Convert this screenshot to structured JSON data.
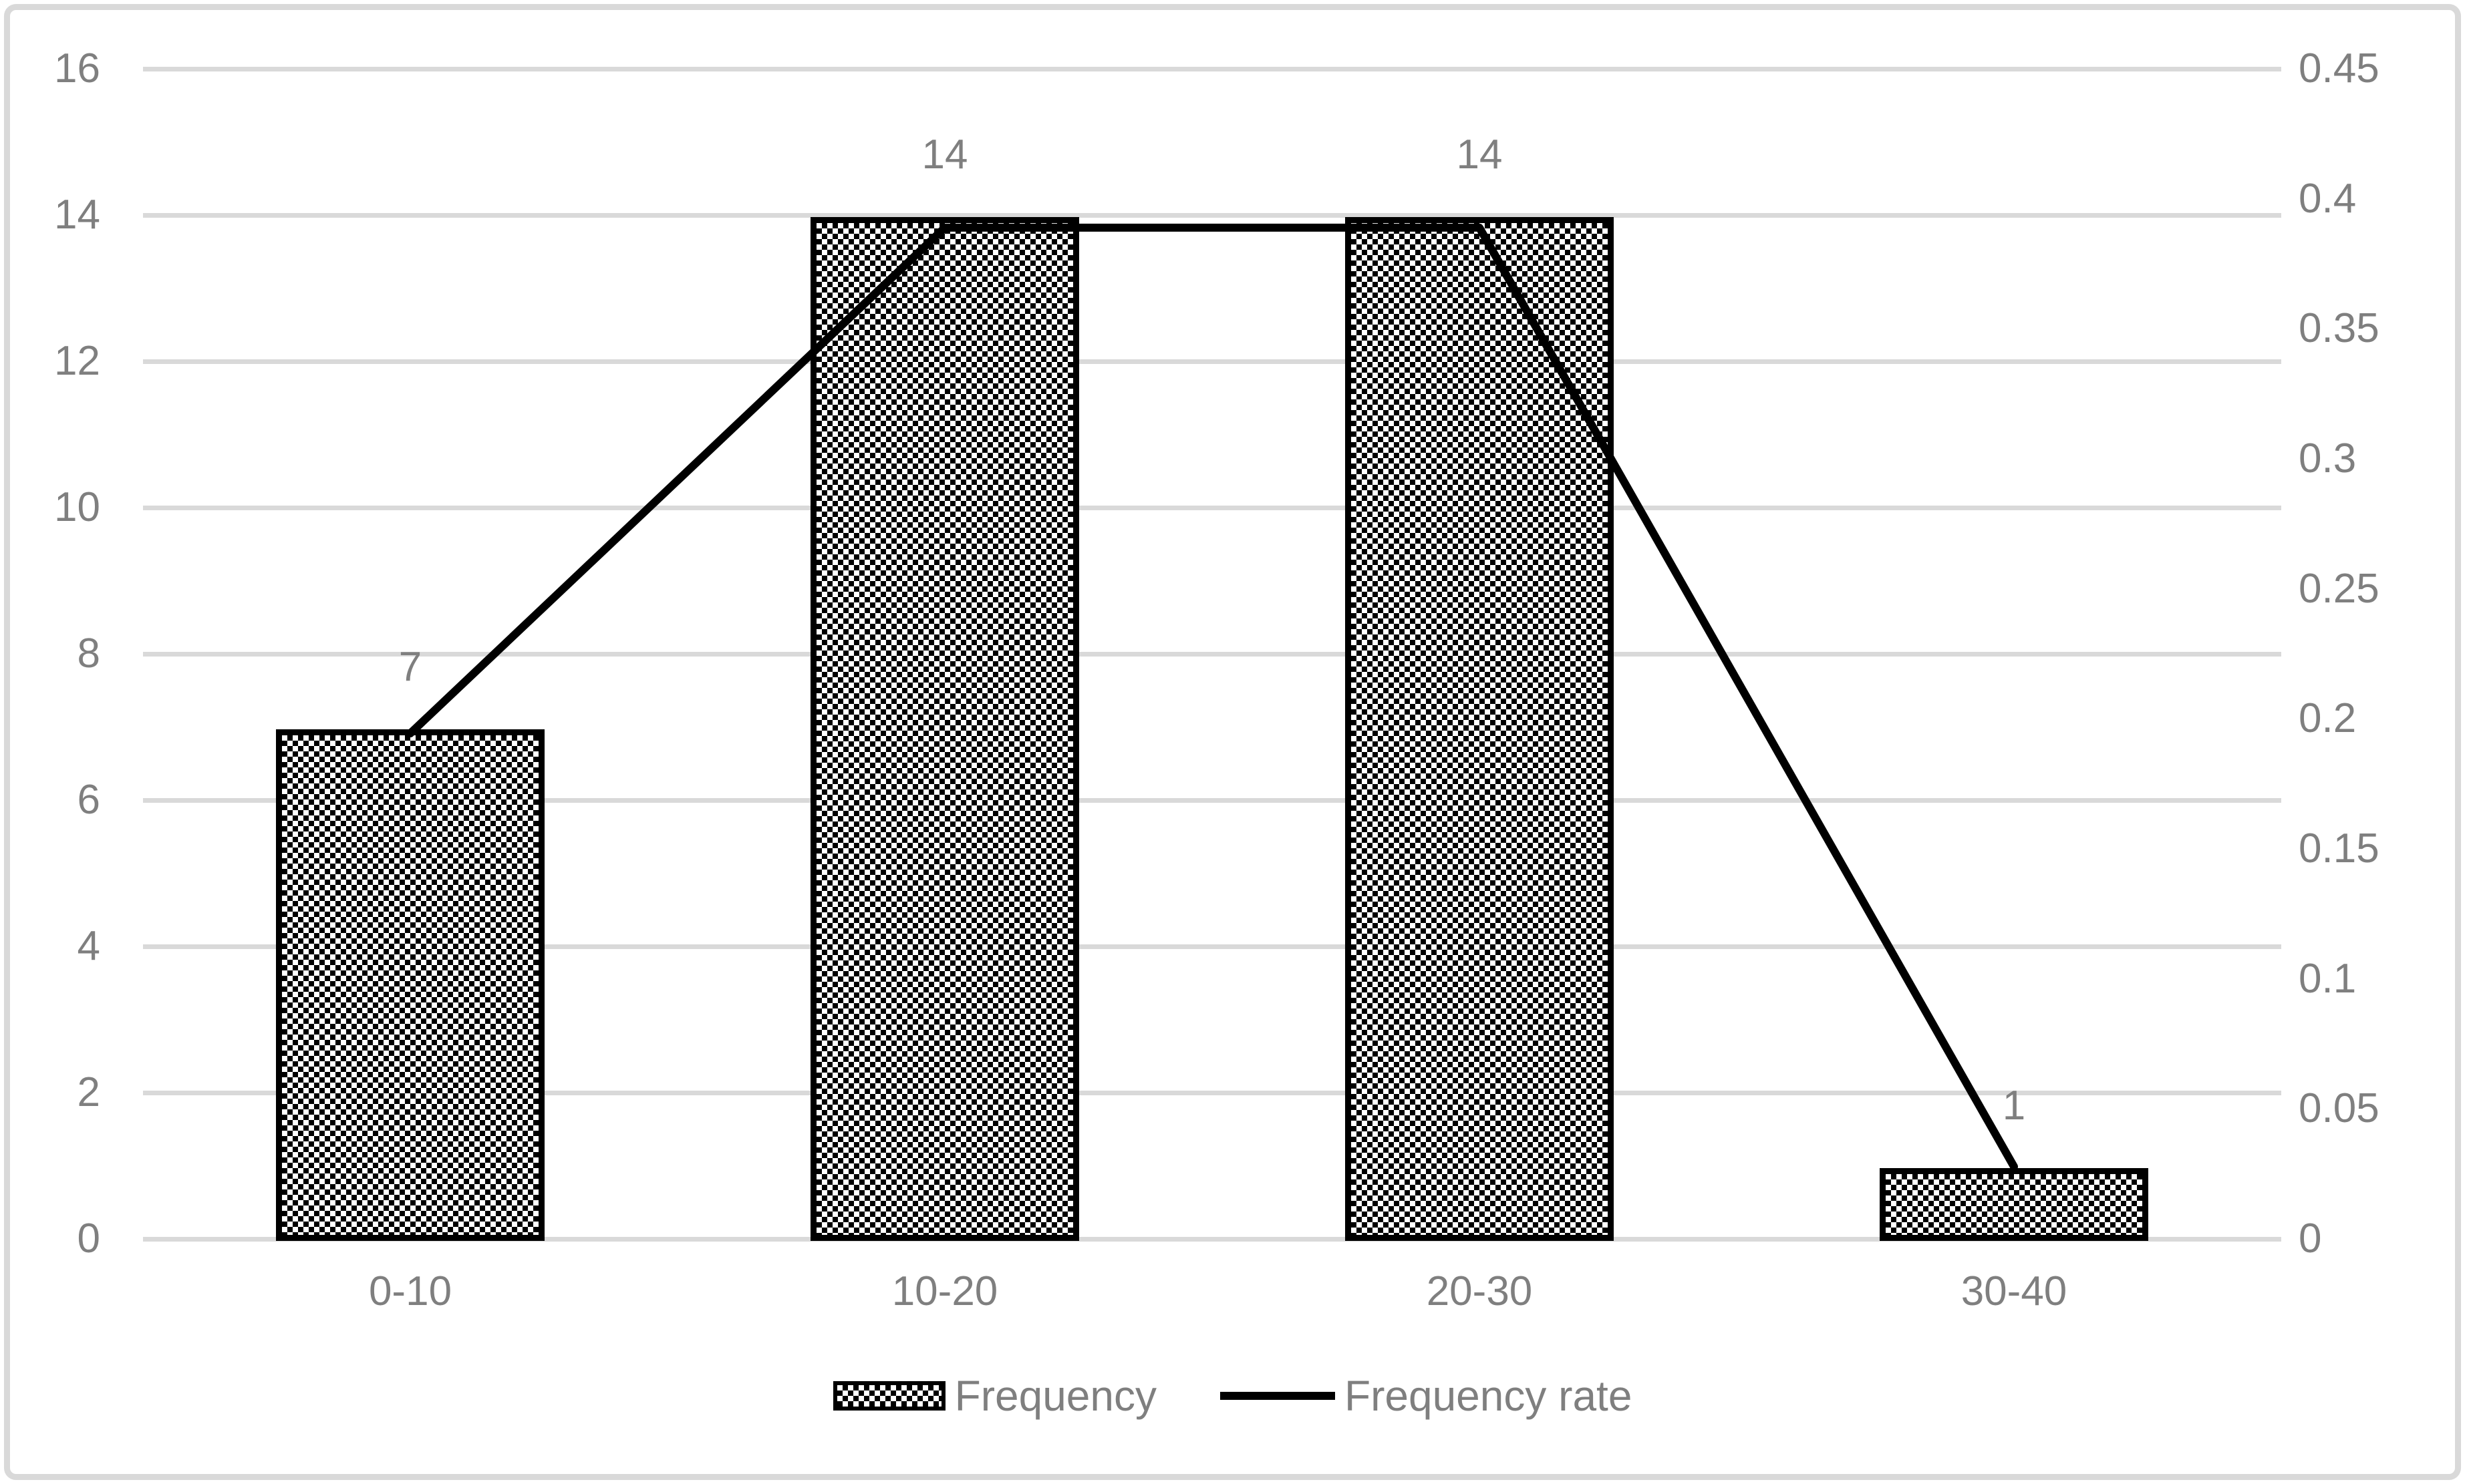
{
  "chart_data": {
    "type": "combo",
    "categories": [
      "0-10",
      "10-20",
      "20-30",
      "30-40"
    ],
    "series": [
      {
        "name": "Frequency",
        "type": "bar",
        "axis": "left",
        "values": [
          7,
          14,
          14,
          1
        ],
        "data_labels": [
          "7",
          "14",
          "14",
          "1"
        ]
      },
      {
        "name": "Frequency rate",
        "type": "line",
        "axis": "right",
        "values": [
          0.1944,
          0.3889,
          0.3889,
          0.0278
        ]
      }
    ],
    "left_axis": {
      "min": 0,
      "max": 16,
      "step": 2,
      "tick_labels": [
        "0",
        "2",
        "4",
        "6",
        "8",
        "10",
        "12",
        "14",
        "16"
      ]
    },
    "right_axis": {
      "min": 0,
      "max": 0.45,
      "step": 0.05,
      "tick_labels": [
        "0",
        "0.05",
        "0.1",
        "0.15",
        "0.2",
        "0.25",
        "0.3",
        "0.35",
        "0.4",
        "0.45"
      ]
    },
    "grid": true,
    "legend_position": "bottom"
  },
  "legend": {
    "items": [
      {
        "label": "Frequency",
        "swatch": "checkered-box"
      },
      {
        "label": "Frequency rate",
        "swatch": "line"
      }
    ]
  },
  "colors": {
    "text": "#7F7F7F",
    "gridline": "#D9D9D9",
    "frame_border": "#D9D9D9",
    "bar_pattern": "#000000",
    "line": "#000000",
    "background": "#FFFFFF"
  }
}
